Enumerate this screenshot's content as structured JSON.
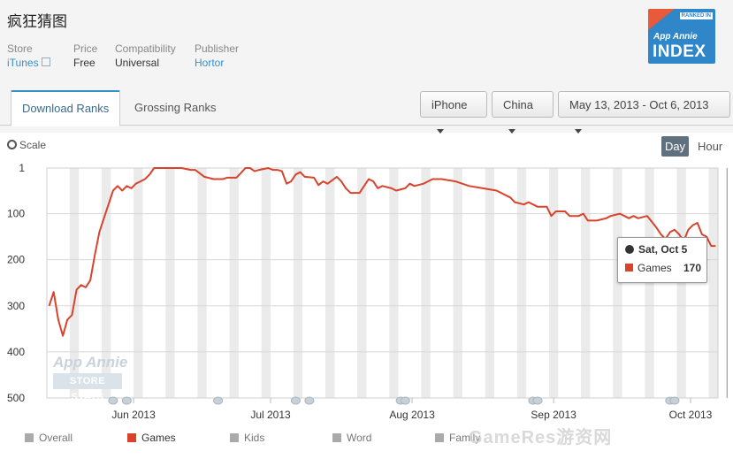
{
  "app": {
    "title": "疯狂猜图",
    "meta": [
      {
        "key": "Store",
        "value": "iTunes"
      },
      {
        "key": "Price",
        "value": "Free"
      },
      {
        "key": "Compatibility",
        "value": "Universal"
      },
      {
        "key": "Publisher",
        "value": "Hortor"
      }
    ]
  },
  "badge": {
    "ranked_in": "RANKED IN",
    "brand": "App Annie",
    "index": "INDEX"
  },
  "tabs": [
    {
      "label": "Download Ranks",
      "active": true
    },
    {
      "label": "Grossing Ranks",
      "active": false
    }
  ],
  "filters": {
    "device": "iPhone",
    "country": "China",
    "date_range": "May 13, 2013 - Oct 6, 2013"
  },
  "controls": {
    "scale": "Scale",
    "day": "Day",
    "hour": "Hour"
  },
  "watermark": {
    "line1": "App Annie",
    "line2": "STORE STATS"
  },
  "site_watermark": "GameRes游资网",
  "tooltip": {
    "date": "Sat, Oct 5",
    "series": "Games",
    "value": "170"
  },
  "colors": {
    "games": "#d9432b",
    "inactive": "#aaaaaa",
    "accent": "#3a8ec6"
  },
  "chart_data": {
    "type": "line",
    "title": "",
    "xlabel": "",
    "ylabel": "",
    "y_inverted": true,
    "ylim": [
      1,
      500
    ],
    "yticks": [
      1,
      100,
      200,
      300,
      400,
      500
    ],
    "xticks": [
      {
        "label": "Jun 2013",
        "date": "2013-06-01"
      },
      {
        "label": "Jul 2013",
        "date": "2013-07-01"
      },
      {
        "label": "Aug 2013",
        "date": "2013-08-01"
      },
      {
        "label": "Sep 2013",
        "date": "2013-09-01"
      },
      {
        "label": "Oct 2013",
        "date": "2013-10-01"
      }
    ],
    "x_start": "2013-05-13",
    "x_end": "2013-10-06",
    "series": [
      {
        "name": "Overall",
        "active": false,
        "values": []
      },
      {
        "name": "Games",
        "active": true,
        "values": [
          [
            "2013-05-13",
            300
          ],
          [
            "2013-05-14",
            270
          ],
          [
            "2013-05-15",
            330
          ],
          [
            "2013-05-16",
            365
          ],
          [
            "2013-05-17",
            330
          ],
          [
            "2013-05-18",
            320
          ],
          [
            "2013-05-19",
            265
          ],
          [
            "2013-05-20",
            255
          ],
          [
            "2013-05-21",
            260
          ],
          [
            "2013-05-22",
            245
          ],
          [
            "2013-05-23",
            190
          ],
          [
            "2013-05-24",
            140
          ],
          [
            "2013-05-25",
            110
          ],
          [
            "2013-05-26",
            80
          ],
          [
            "2013-05-27",
            50
          ],
          [
            "2013-05-28",
            40
          ],
          [
            "2013-05-29",
            50
          ],
          [
            "2013-05-30",
            40
          ],
          [
            "2013-05-31",
            45
          ],
          [
            "2013-06-01",
            35
          ],
          [
            "2013-06-02",
            30
          ],
          [
            "2013-06-03",
            25
          ],
          [
            "2013-06-04",
            15
          ],
          [
            "2013-06-05",
            1
          ],
          [
            "2013-06-07",
            1
          ],
          [
            "2013-06-09",
            1
          ],
          [
            "2013-06-11",
            1
          ],
          [
            "2013-06-13",
            5
          ],
          [
            "2013-06-14",
            5
          ],
          [
            "2013-06-16",
            20
          ],
          [
            "2013-06-18",
            25
          ],
          [
            "2013-06-20",
            25
          ],
          [
            "2013-06-21",
            22
          ],
          [
            "2013-06-23",
            22
          ],
          [
            "2013-06-24",
            12
          ],
          [
            "2013-06-25",
            1
          ],
          [
            "2013-06-26",
            1
          ],
          [
            "2013-06-27",
            8
          ],
          [
            "2013-06-28",
            5
          ],
          [
            "2013-06-30",
            1
          ],
          [
            "2013-07-01",
            5
          ],
          [
            "2013-07-02",
            5
          ],
          [
            "2013-07-03",
            8
          ],
          [
            "2013-07-04",
            35
          ],
          [
            "2013-07-05",
            30
          ],
          [
            "2013-07-06",
            15
          ],
          [
            "2013-07-07",
            10
          ],
          [
            "2013-07-08",
            20
          ],
          [
            "2013-07-10",
            22
          ],
          [
            "2013-07-11",
            38
          ],
          [
            "2013-07-12",
            30
          ],
          [
            "2013-07-13",
            35
          ],
          [
            "2013-07-15",
            20
          ],
          [
            "2013-07-16",
            30
          ],
          [
            "2013-07-17",
            45
          ],
          [
            "2013-07-18",
            55
          ],
          [
            "2013-07-20",
            55
          ],
          [
            "2013-07-21",
            40
          ],
          [
            "2013-07-22",
            25
          ],
          [
            "2013-07-23",
            30
          ],
          [
            "2013-07-24",
            45
          ],
          [
            "2013-07-25",
            40
          ],
          [
            "2013-07-27",
            45
          ],
          [
            "2013-07-28",
            50
          ],
          [
            "2013-07-30",
            45
          ],
          [
            "2013-07-31",
            35
          ],
          [
            "2013-08-01",
            40
          ],
          [
            "2013-08-03",
            35
          ],
          [
            "2013-08-04",
            30
          ],
          [
            "2013-08-05",
            25
          ],
          [
            "2013-08-07",
            25
          ],
          [
            "2013-08-10",
            30
          ],
          [
            "2013-08-13",
            40
          ],
          [
            "2013-08-16",
            45
          ],
          [
            "2013-08-19",
            50
          ],
          [
            "2013-08-22",
            65
          ],
          [
            "2013-08-23",
            75
          ],
          [
            "2013-08-25",
            80
          ],
          [
            "2013-08-26",
            75
          ],
          [
            "2013-08-28",
            85
          ],
          [
            "2013-08-30",
            85
          ],
          [
            "2013-08-31",
            105
          ],
          [
            "2013-09-01",
            95
          ],
          [
            "2013-09-03",
            95
          ],
          [
            "2013-09-04",
            105
          ],
          [
            "2013-09-06",
            105
          ],
          [
            "2013-09-07",
            100
          ],
          [
            "2013-09-08",
            115
          ],
          [
            "2013-09-10",
            115
          ],
          [
            "2013-09-12",
            110
          ],
          [
            "2013-09-13",
            105
          ],
          [
            "2013-09-15",
            100
          ],
          [
            "2013-09-16",
            105
          ],
          [
            "2013-09-17",
            110
          ],
          [
            "2013-09-18",
            105
          ],
          [
            "2013-09-19",
            110
          ],
          [
            "2013-09-21",
            105
          ],
          [
            "2013-09-23",
            130
          ],
          [
            "2013-09-24",
            145
          ],
          [
            "2013-09-25",
            155
          ],
          [
            "2013-09-26",
            140
          ],
          [
            "2013-09-27",
            135
          ],
          [
            "2013-09-28",
            145
          ],
          [
            "2013-09-29",
            160
          ],
          [
            "2013-09-30",
            135
          ],
          [
            "2013-10-01",
            125
          ],
          [
            "2013-10-02",
            120
          ],
          [
            "2013-10-03",
            145
          ],
          [
            "2013-10-04",
            150
          ],
          [
            "2013-10-05",
            170
          ],
          [
            "2013-10-06",
            170
          ]
        ]
      },
      {
        "name": "Kids",
        "active": false,
        "values": []
      },
      {
        "name": "Word",
        "active": false,
        "values": []
      },
      {
        "name": "Family",
        "active": false,
        "values": []
      }
    ],
    "grid": true,
    "legend": "bottom"
  }
}
